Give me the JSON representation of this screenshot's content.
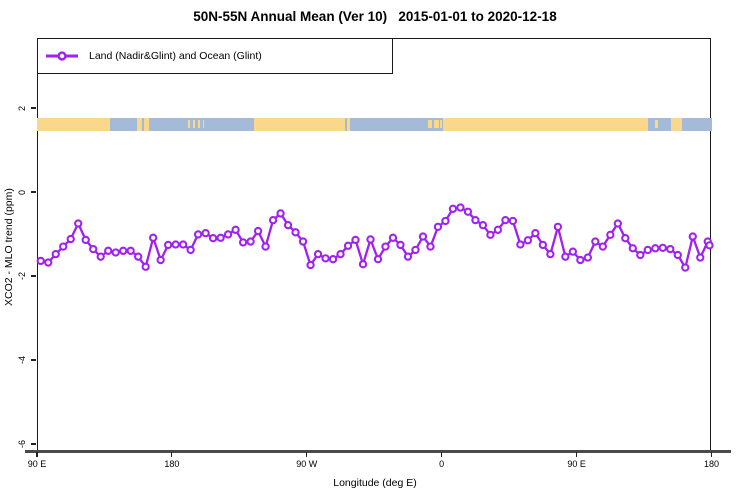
{
  "figure": {
    "title": "50N-55N Annual Mean (Ver 10)   2015-01-01 to 2020-12-18",
    "background_color": "#ffffff"
  },
  "legend": {
    "label": "Land (Nadir&Glint) and Ocean (Glint)",
    "marker": "open-circle-on-line",
    "marker_color": "#A020F0"
  },
  "chart_data": {
    "type": "line",
    "title": "50N-55N Annual Mean (Ver 10)   2015-01-01 to 2020-12-18",
    "xlabel": "Longitude (deg E)",
    "ylabel": "XCO2 - MLO trend (ppm)",
    "grid": "off",
    "legend_position": "top-left-box",
    "x_axis": {
      "description": "longitude axis starting at 90E, wrapping eastward 450 degrees to 180",
      "range_deg_along_axis": [
        0,
        450
      ],
      "ticks": [
        {
          "pos_deg": 0,
          "label": "90 E"
        },
        {
          "pos_deg": 90,
          "label": "180"
        },
        {
          "pos_deg": 180,
          "label": "90 W"
        },
        {
          "pos_deg": 270,
          "label": "0"
        },
        {
          "pos_deg": 360,
          "label": "90 E"
        },
        {
          "pos_deg": 450,
          "label": "180"
        }
      ]
    },
    "y_axis": {
      "range": [
        -6.6,
        3.7
      ],
      "ticks": [
        {
          "value": 2,
          "label": "2"
        },
        {
          "value": 0,
          "label": "0"
        },
        {
          "value": -2,
          "label": "-2"
        },
        {
          "value": -4,
          "label": "-4"
        },
        {
          "value": -6,
          "label": "-6"
        }
      ]
    },
    "series": [
      {
        "name": "Land (Nadir&Glint) and Ocean (Glint)",
        "color": "#A020F0",
        "marker": "open-circle",
        "x_start_deg_along_axis": 2.5,
        "x_step_deg": 5,
        "values": [
          -1.64,
          -1.68,
          -1.48,
          -1.3,
          -1.12,
          -0.75,
          -1.14,
          -1.36,
          -1.54,
          -1.4,
          -1.44,
          -1.4,
          -1.4,
          -1.54,
          -1.78,
          -1.09,
          -1.62,
          -1.26,
          -1.25,
          -1.25,
          -1.38,
          -1.01,
          -0.98,
          -1.1,
          -1.09,
          -1.01,
          -0.9,
          -1.2,
          -1.18,
          -0.93,
          -1.3,
          -0.67,
          -0.51,
          -0.79,
          -0.96,
          -1.18,
          -1.74,
          -1.48,
          -1.58,
          -1.6,
          -1.48,
          -1.28,
          -1.14,
          -1.72,
          -1.13,
          -1.6,
          -1.3,
          -1.09,
          -1.26,
          -1.54,
          -1.38,
          -1.06,
          -1.3,
          -0.83,
          -0.69,
          -0.4,
          -0.37,
          -0.47,
          -0.67,
          -0.79,
          -1.02,
          -0.9,
          -0.67,
          -0.69,
          -1.25,
          -1.15,
          -0.98,
          -1.26,
          -1.48,
          -0.83,
          -1.54,
          -1.42,
          -1.62,
          -1.56,
          -1.18,
          -1.3,
          -1.02,
          -0.75,
          -1.1,
          -1.34,
          -1.5,
          -1.38,
          -1.34,
          -1.33,
          -1.36,
          -1.5,
          -1.8,
          -1.06,
          -1.56,
          -1.18,
          -1.27
        ]
      }
    ],
    "map_strip": {
      "description": "land/ocean strip for 50N-55N latitude band",
      "value_top": 1.77,
      "value_bottom": 1.46,
      "ocean_color": "#A4BAD9",
      "land_color": "#FAD78B",
      "land_segments_deg": [
        [
          0,
          48.7
        ],
        [
          66.5,
          70
        ],
        [
          71.5,
          75
        ],
        [
          144.5,
          146.5
        ],
        [
          147,
          205.5
        ],
        [
          206.5,
          208.5
        ],
        [
          271,
          407.5
        ],
        [
          422.7,
          430
        ]
      ],
      "island_specks_deg": [
        [
          100.5,
          102
        ],
        [
          104,
          105.5
        ],
        [
          107.5,
          109
        ],
        [
          110.5,
          111.5
        ],
        [
          261,
          263.5
        ],
        [
          265,
          268.5
        ],
        [
          269,
          270.3
        ],
        [
          412,
          414
        ]
      ]
    }
  },
  "colors": {
    "line": "#A020F0",
    "axis": "#1a1a1a",
    "baseline": "#4a4a4a",
    "land": "#FAD78B",
    "ocean": "#A4BAD9"
  }
}
